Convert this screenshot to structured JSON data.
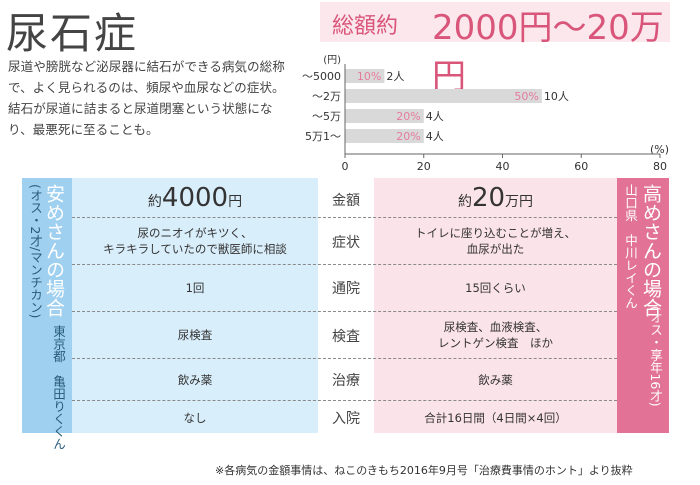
{
  "title": "尿石症",
  "description": "尿道や膀胱など泌尿器に結石ができる病気の総称で、よく見られるのは、頻尿や血尿などの症状。結石が尿道に詰まると尿道閉塞という状態になり、最悪死に至ることも。",
  "total": {
    "label": "総額約",
    "value": "2000円〜20万円"
  },
  "chart_data": {
    "type": "bar",
    "orientation": "horizontal",
    "y_unit": "(円)",
    "x_unit": "(%)",
    "categories": [
      "〜5000",
      "〜2万",
      "〜5万",
      "5万1〜"
    ],
    "values": [
      10,
      50,
      20,
      20
    ],
    "value_labels": [
      "10%",
      "50%",
      "20%",
      "20%"
    ],
    "counts": [
      "2人",
      "10人",
      "4人",
      "4人"
    ],
    "xlim": [
      0,
      80
    ],
    "xticks": [
      "0",
      "20",
      "40",
      "60",
      "80"
    ],
    "colors": {
      "bar": "#d9d9d9",
      "label": "#e57b9c",
      "axis": "#666666"
    }
  },
  "left_case": {
    "title": "安めさんの場合",
    "profile": "(オス・2才/マンチカン)",
    "owner": "東京都　亀田りくくん"
  },
  "right_case": {
    "title": "高めさんの場合",
    "profile": "(オス・享年16才)",
    "owner": "山口県　中川レイくん"
  },
  "amount": {
    "left_prefix": "約",
    "left_value": "4000",
    "left_unit": "円",
    "right_prefix": "約",
    "right_value": "20",
    "right_unit": "万円"
  },
  "rows": [
    {
      "label": "金額"
    },
    {
      "label": "症状",
      "left": [
        "尿のニオイがキツく、",
        "キラキラしていたので獣医師に相談"
      ],
      "right": [
        "トイレに座り込むことが増え、",
        "血尿が出た"
      ]
    },
    {
      "label": "通院",
      "left": [
        "1回"
      ],
      "right": [
        "15回くらい"
      ]
    },
    {
      "label": "検査",
      "left": [
        "尿検査"
      ],
      "right": [
        "尿検査、血液検査、",
        "レントゲン検査　ほか"
      ]
    },
    {
      "label": "治療",
      "left": [
        "飲み薬"
      ],
      "right": [
        "飲み薬"
      ]
    },
    {
      "label": "入院",
      "left": [
        "なし"
      ],
      "right": [
        "合計16日間（4日間×4回）"
      ]
    }
  ],
  "note": "※各病気の金額事情は、ねこのきもち2016年9月号「治療費事情のホント」より抜粋",
  "colors": {
    "accent_pink": "#d9557a",
    "left_blue": "#9fd0f0",
    "left_light": "#d9eefb",
    "right_pink": "#e27396",
    "right_light": "#fbe3ea"
  }
}
